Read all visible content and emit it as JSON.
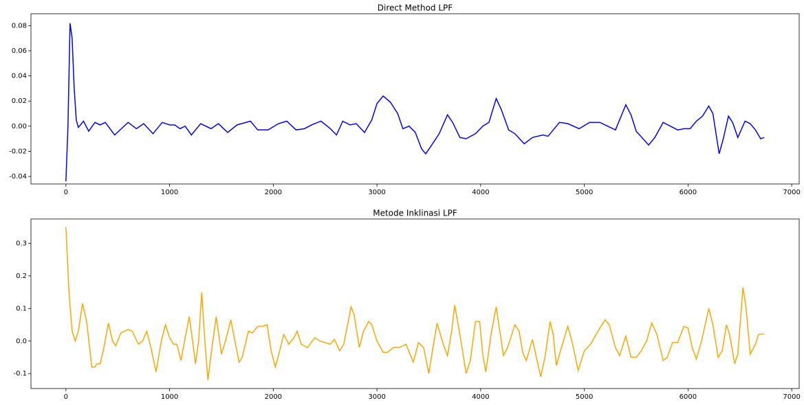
{
  "chart_data": [
    {
      "type": "line",
      "title": "Direct Method LPF",
      "xlim": [
        -337,
        7072
      ],
      "ylim": [
        -0.046,
        0.0895
      ],
      "xticks": [
        0,
        1000,
        2000,
        3000,
        4000,
        5000,
        6000,
        7000
      ],
      "yticks": [
        -0.04,
        -0.02,
        {
          "value": 0,
          "label": "0.00"
        },
        0.02,
        0.04,
        0.06,
        0.08
      ],
      "x": [
        0,
        20,
        40,
        60,
        80,
        100,
        120,
        170,
        220,
        280,
        330,
        380,
        470,
        600,
        680,
        750,
        840,
        930,
        1000,
        1050,
        1100,
        1150,
        1210,
        1300,
        1400,
        1470,
        1560,
        1650,
        1780,
        1850,
        1950,
        2050,
        2130,
        2220,
        2300,
        2370,
        2460,
        2550,
        2610,
        2670,
        2740,
        2800,
        2880,
        2950,
        3000,
        3060,
        3130,
        3200,
        3250,
        3310,
        3370,
        3430,
        3470,
        3520,
        3600,
        3680,
        3730,
        3800,
        3860,
        3950,
        4020,
        4080,
        4150,
        4200,
        4270,
        4330,
        4420,
        4500,
        4600,
        4650,
        4760,
        4840,
        4950,
        5050,
        5150,
        5250,
        5300,
        5400,
        5450,
        5500,
        5620,
        5680,
        5760,
        5830,
        5900,
        5960,
        6020,
        6080,
        6140,
        6200,
        6240,
        6300,
        6340,
        6390,
        6430,
        6480,
        6550,
        6600,
        6650,
        6700,
        6735
      ],
      "series": [
        {
          "color": "#0000ff",
          "values": [
            -0.044,
            0.0,
            0.082,
            0.07,
            0.03,
            0.005,
            -0.001,
            0.004,
            -0.004,
            0.003,
            0.001,
            0.003,
            -0.007,
            0.003,
            -0.002,
            0.002,
            -0.006,
            0.003,
            0.001,
            0.001,
            -0.002,
            0.0,
            -0.007,
            0.002,
            -0.002,
            0.002,
            -0.005,
            0.001,
            0.004,
            -0.003,
            -0.003,
            0.002,
            0.004,
            -0.003,
            -0.002,
            0.001,
            0.004,
            -0.002,
            -0.007,
            0.004,
            0.001,
            0.002,
            -0.005,
            0.005,
            0.018,
            0.024,
            0.019,
            0.01,
            -0.002,
            0.0,
            -0.005,
            -0.018,
            -0.022,
            -0.016,
            -0.006,
            0.009,
            0.003,
            -0.009,
            -0.01,
            -0.006,
            0.0,
            0.003,
            0.022,
            0.013,
            -0.003,
            -0.006,
            -0.014,
            -0.009,
            -0.007,
            -0.008,
            0.003,
            0.002,
            -0.002,
            0.003,
            0.003,
            -0.001,
            -0.003,
            0.017,
            0.009,
            -0.004,
            -0.015,
            -0.009,
            0.003,
            0.0,
            -0.003,
            -0.002,
            -0.002,
            0.004,
            0.008,
            0.016,
            0.01,
            -0.022,
            -0.01,
            0.008,
            0.003,
            -0.009,
            0.004,
            0.002,
            -0.003,
            -0.01,
            -0.009
          ]
        }
      ]
    },
    {
      "type": "line",
      "title": "Metode Inklinasi LPF",
      "xlim": [
        -337,
        7072
      ],
      "ylim": [
        -0.146,
        0.375
      ],
      "xticks": [
        0,
        1000,
        2000,
        3000,
        4000,
        5000,
        6000,
        7000
      ],
      "yticks": [
        -0.1,
        {
          "value": 0,
          "label": "0.0"
        },
        0.1,
        0.2,
        0.3
      ],
      "x": [
        0,
        30,
        60,
        90,
        120,
        160,
        200,
        250,
        280,
        300,
        330,
        360,
        410,
        450,
        480,
        530,
        600,
        640,
        700,
        740,
        780,
        820,
        870,
        920,
        960,
        1000,
        1040,
        1070,
        1110,
        1150,
        1190,
        1230,
        1250,
        1280,
        1310,
        1340,
        1370,
        1400,
        1450,
        1500,
        1540,
        1590,
        1630,
        1670,
        1700,
        1760,
        1800,
        1850,
        1900,
        1940,
        1980,
        2020,
        2070,
        2100,
        2150,
        2200,
        2230,
        2270,
        2330,
        2400,
        2450,
        2500,
        2550,
        2590,
        2640,
        2680,
        2750,
        2780,
        2830,
        2870,
        2920,
        2950,
        3000,
        3060,
        3100,
        3160,
        3220,
        3280,
        3350,
        3400,
        3450,
        3500,
        3540,
        3580,
        3640,
        3680,
        3720,
        3750,
        3800,
        3860,
        3900,
        3950,
        3990,
        4020,
        4050,
        4100,
        4150,
        4180,
        4220,
        4260,
        4330,
        4370,
        4410,
        4440,
        4500,
        4530,
        4580,
        4620,
        4670,
        4700,
        4730,
        4770,
        4840,
        4880,
        4940,
        5000,
        5060,
        5150,
        5200,
        5240,
        5300,
        5340,
        5400,
        5450,
        5500,
        5550,
        5600,
        5650,
        5700,
        5760,
        5800,
        5850,
        5900,
        5960,
        6000,
        6040,
        6080,
        6130,
        6200,
        6240,
        6290,
        6330,
        6370,
        6400,
        6450,
        6480,
        6530,
        6560,
        6600,
        6650,
        6680,
        6735
      ],
      "series": [
        {
          "color": "#ffa500",
          "values": [
            0.35,
            0.15,
            0.03,
            0.0,
            0.03,
            0.115,
            0.06,
            -0.08,
            -0.08,
            -0.07,
            -0.07,
            -0.03,
            0.055,
            0.0,
            -0.015,
            0.025,
            0.035,
            0.03,
            -0.01,
            0.0,
            0.03,
            -0.02,
            -0.095,
            0.0,
            0.05,
            0.01,
            -0.01,
            -0.01,
            -0.06,
            0.01,
            0.075,
            -0.02,
            -0.07,
            0.0,
            0.15,
            0.0,
            -0.12,
            -0.04,
            0.075,
            -0.04,
            0.0,
            0.065,
            0.0,
            -0.065,
            -0.05,
            0.03,
            0.025,
            0.045,
            0.045,
            0.05,
            -0.03,
            -0.08,
            -0.02,
            0.02,
            -0.01,
            0.01,
            0.03,
            -0.01,
            -0.02,
            0.01,
            0.0,
            -0.005,
            -0.01,
            0.005,
            -0.03,
            -0.01,
            0.105,
            0.08,
            -0.02,
            0.03,
            0.06,
            0.05,
            0.0,
            -0.035,
            -0.035,
            -0.02,
            -0.02,
            -0.01,
            -0.065,
            -0.005,
            -0.02,
            -0.1,
            -0.02,
            0.055,
            -0.01,
            -0.045,
            0.03,
            0.11,
            0.02,
            -0.1,
            -0.06,
            0.06,
            0.06,
            -0.04,
            -0.095,
            0.02,
            0.105,
            0.04,
            -0.045,
            -0.02,
            0.05,
            0.03,
            -0.04,
            -0.06,
            0.005,
            -0.04,
            -0.11,
            -0.05,
            0.06,
            0.02,
            -0.075,
            -0.03,
            0.045,
            0.0,
            -0.09,
            -0.03,
            -0.01,
            0.04,
            0.065,
            0.05,
            -0.02,
            -0.045,
            0.015,
            -0.05,
            -0.05,
            -0.03,
            0.0,
            0.055,
            0.02,
            -0.06,
            -0.05,
            -0.005,
            -0.005,
            0.045,
            0.04,
            -0.02,
            -0.055,
            0.0,
            0.1,
            0.05,
            -0.05,
            -0.03,
            0.05,
            0.02,
            -0.07,
            -0.04,
            0.165,
            0.1,
            -0.04,
            -0.01,
            0.02,
            0.022
          ]
        }
      ]
    }
  ]
}
